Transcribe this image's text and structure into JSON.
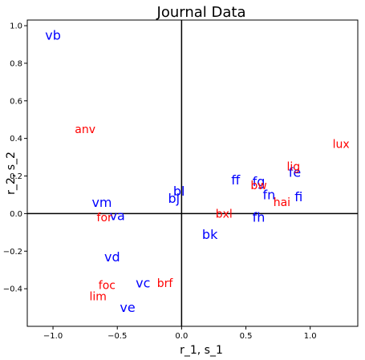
{
  "chart_data": {
    "type": "scatter",
    "title": "Journal Data",
    "xlabel": "r_1, s_1",
    "ylabel": "r_2, s_2",
    "xlim": [
      -1.2,
      1.37
    ],
    "ylim": [
      -0.6,
      1.03
    ],
    "xticks": [
      -1.0,
      -0.5,
      0.0,
      0.5,
      1.0
    ],
    "xtick_labels": [
      "−1.0",
      "−0.5",
      "0.0",
      "0.5",
      "1.0"
    ],
    "yticks": [
      -0.4,
      -0.2,
      0.0,
      0.2,
      0.4,
      0.6,
      0.8,
      1.0
    ],
    "ytick_labels": [
      "−0.4",
      "−0.2",
      "0.0",
      "0.2",
      "0.4",
      "0.6",
      "0.8",
      "1.0"
    ],
    "grid": false,
    "zero_lines": true,
    "colors": {
      "blue_series": "#0000ff",
      "red_series": "#ff0000"
    },
    "series": [
      {
        "color": "#0000ff",
        "points": [
          {
            "label": "vb",
            "x": -1.0,
            "y": 0.95
          },
          {
            "label": "vm",
            "x": -0.62,
            "y": 0.06
          },
          {
            "label": "va",
            "x": -0.5,
            "y": -0.01
          },
          {
            "label": "vd",
            "x": -0.54,
            "y": -0.23
          },
          {
            "label": "vc",
            "x": -0.3,
            "y": -0.37
          },
          {
            "label": "ve",
            "x": -0.42,
            "y": -0.5
          },
          {
            "label": "bj",
            "x": -0.06,
            "y": 0.08
          },
          {
            "label": "bl",
            "x": -0.02,
            "y": 0.12
          },
          {
            "label": "bk",
            "x": 0.22,
            "y": -0.11
          },
          {
            "label": "ff",
            "x": 0.42,
            "y": 0.18
          },
          {
            "label": "fg",
            "x": 0.6,
            "y": 0.17
          },
          {
            "label": "fn",
            "x": 0.68,
            "y": 0.1
          },
          {
            "label": "fh",
            "x": 0.6,
            "y": -0.02
          },
          {
            "label": "fe",
            "x": 0.88,
            "y": 0.22
          },
          {
            "label": "fi",
            "x": 0.91,
            "y": 0.09
          }
        ]
      },
      {
        "color": "#ff0000",
        "points": [
          {
            "label": "anv",
            "x": -0.75,
            "y": 0.45
          },
          {
            "label": "for",
            "x": -0.6,
            "y": -0.02
          },
          {
            "label": "foc",
            "x": -0.58,
            "y": -0.38
          },
          {
            "label": "lim",
            "x": -0.65,
            "y": -0.44
          },
          {
            "label": "brf",
            "x": -0.13,
            "y": -0.37
          },
          {
            "label": "bxl",
            "x": 0.33,
            "y": 0.0
          },
          {
            "label": "lig",
            "x": 0.87,
            "y": 0.25
          },
          {
            "label": "bw",
            "x": 0.6,
            "y": 0.15
          },
          {
            "label": "hai",
            "x": 0.78,
            "y": 0.06
          },
          {
            "label": "lux",
            "x": 1.24,
            "y": 0.37
          }
        ]
      }
    ]
  }
}
